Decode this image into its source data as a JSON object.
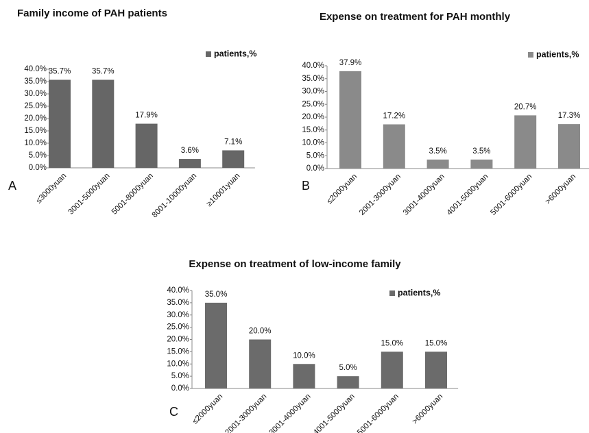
{
  "chart_data": [
    {
      "type": "bar",
      "title": "Family income of PAH patients",
      "panel_label": "A",
      "categories": [
        "≤3000yuan",
        "3001-5000yuan",
        "5001-8000yuan",
        "8001-10000yuan",
        "≥10001yuan"
      ],
      "series": [
        {
          "name": "patients,%",
          "color": "#666666",
          "values": [
            35.7,
            35.7,
            17.9,
            3.6,
            7.1
          ],
          "value_labels": [
            "35.7%",
            "35.7%",
            "17.9%",
            "3.6%",
            "7.1%"
          ]
        }
      ],
      "ylim": [
        0,
        40
      ],
      "yticks": [
        {
          "value": 0,
          "label": "0.0%"
        },
        {
          "value": 5,
          "label": "5.0%"
        },
        {
          "value": 10,
          "label": "10.0%"
        },
        {
          "value": 15,
          "label": "15.0%"
        },
        {
          "value": 20,
          "label": "20.0%"
        },
        {
          "value": 25,
          "label": "25.0%"
        },
        {
          "value": 30,
          "label": "30.0%"
        },
        {
          "value": 35,
          "label": "35.0%"
        },
        {
          "value": 40,
          "label": "40.0%"
        }
      ],
      "legend": "top-right",
      "grid": false
    },
    {
      "type": "bar",
      "title": "Expense on treatment for PAH monthly",
      "panel_label": "B",
      "categories": [
        "≤2000yuan",
        "2001-3000yuan",
        "3001-4000yuan",
        "4001-5000yuan",
        "5001-6000yuan",
        ">6000yuan"
      ],
      "series": [
        {
          "name": "patients,%",
          "color": "#8a8a8a",
          "values": [
            37.9,
            17.2,
            3.5,
            3.5,
            20.7,
            17.3
          ],
          "value_labels": [
            "37.9%",
            "17.2%",
            "3.5%",
            "3.5%",
            "20.7%",
            "17.3%"
          ]
        }
      ],
      "ylim": [
        0,
        40
      ],
      "yticks": [
        {
          "value": 0,
          "label": "0.0%"
        },
        {
          "value": 5,
          "label": "5.0%"
        },
        {
          "value": 10,
          "label": "10.0%"
        },
        {
          "value": 15,
          "label": "15.0%"
        },
        {
          "value": 20,
          "label": "20.0%"
        },
        {
          "value": 25,
          "label": "25.0%"
        },
        {
          "value": 30,
          "label": "30.0%"
        },
        {
          "value": 35,
          "label": "35.0%"
        },
        {
          "value": 40,
          "label": "40.0%"
        }
      ],
      "legend": "top-right",
      "grid": false
    },
    {
      "type": "bar",
      "title": "Expense on treatment of low-income family",
      "panel_label": "C",
      "categories": [
        "≤2000yuan",
        "2001-3000yuan",
        "3001-4000yuan",
        "4001-5000yuan",
        "5001-6000yuan",
        ">6000yuan"
      ],
      "series": [
        {
          "name": "patients,%",
          "color": "#6b6b6b",
          "values": [
            35,
            20,
            10,
            5,
            15,
            15
          ],
          "value_labels": [
            "35.0%",
            "20.0%",
            "10.0%",
            "5.0%",
            "15.0%",
            "15.0%"
          ]
        }
      ],
      "ylim": [
        0,
        40
      ],
      "yticks": [
        {
          "value": 0,
          "label": "0.0%"
        },
        {
          "value": 5,
          "label": "5.0%"
        },
        {
          "value": 10,
          "label": "10.0%"
        },
        {
          "value": 15,
          "label": "15.0%"
        },
        {
          "value": 20,
          "label": "20.0%"
        },
        {
          "value": 25,
          "label": "25.0%"
        },
        {
          "value": 30,
          "label": "30.0%"
        },
        {
          "value": 35,
          "label": "35.0%"
        },
        {
          "value": 40,
          "label": "40.0%"
        }
      ],
      "legend": "top-right",
      "grid": false
    }
  ]
}
